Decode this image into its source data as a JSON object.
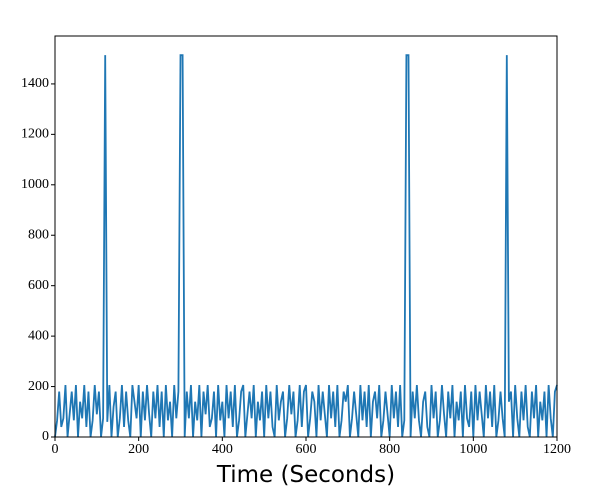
{
  "chart_data": {
    "type": "line",
    "xlabel": "Time (Seconds)",
    "x": [
      0,
      5,
      10,
      15,
      20,
      25,
      30,
      35,
      40,
      45,
      50,
      55,
      60,
      65,
      70,
      75,
      80,
      85,
      90,
      95,
      100,
      105,
      110,
      115,
      120,
      125,
      130,
      135,
      140,
      145,
      150,
      155,
      160,
      165,
      170,
      175,
      180,
      185,
      190,
      195,
      200,
      205,
      210,
      215,
      220,
      225,
      230,
      235,
      240,
      245,
      250,
      255,
      260,
      265,
      270,
      275,
      280,
      285,
      290,
      295,
      300,
      305,
      310,
      315,
      320,
      325,
      330,
      335,
      340,
      345,
      350,
      355,
      360,
      365,
      370,
      375,
      380,
      385,
      390,
      395,
      400,
      405,
      410,
      415,
      420,
      425,
      430,
      435,
      440,
      445,
      450,
      455,
      460,
      465,
      470,
      475,
      480,
      485,
      490,
      495,
      500,
      505,
      510,
      515,
      520,
      525,
      530,
      535,
      540,
      545,
      550,
      555,
      560,
      565,
      570,
      575,
      580,
      585,
      590,
      595,
      600,
      605,
      610,
      615,
      620,
      625,
      630,
      635,
      640,
      645,
      650,
      655,
      660,
      665,
      670,
      675,
      680,
      685,
      690,
      695,
      700,
      705,
      710,
      715,
      720,
      725,
      730,
      735,
      740,
      745,
      750,
      755,
      760,
      765,
      770,
      775,
      780,
      785,
      790,
      795,
      800,
      805,
      810,
      815,
      820,
      825,
      830,
      835,
      840,
      845,
      850,
      855,
      860,
      865,
      870,
      875,
      880,
      885,
      890,
      895,
      900,
      905,
      910,
      915,
      920,
      925,
      930,
      935,
      940,
      945,
      950,
      955,
      960,
      965,
      970,
      975,
      980,
      985,
      990,
      995,
      1000,
      1005,
      1010,
      1015,
      1020,
      1025,
      1030,
      1035,
      1040,
      1045,
      1050,
      1055,
      1060,
      1065,
      1070,
      1075,
      1080,
      1085,
      1090,
      1095,
      1100,
      1105,
      1110,
      1115,
      1120,
      1125,
      1130,
      1135,
      1140,
      1145,
      1150,
      1155,
      1160,
      1165,
      1170,
      1175,
      1180,
      1185,
      1190,
      1195,
      1200
    ],
    "series": [
      {
        "color": "#1f77b4",
        "values": [
          0,
          66,
          180,
          40,
          74,
          206,
          0,
          90,
          180,
          66,
          206,
          0,
          140,
          74,
          206,
          40,
          180,
          0,
          66,
          206,
          90,
          180,
          0,
          74,
          1514,
          60,
          206,
          0,
          120,
          180,
          0,
          74,
          206,
          40,
          180,
          66,
          0,
          206,
          140,
          74,
          206,
          0,
          180,
          66,
          206,
          90,
          0,
          180,
          74,
          206,
          40,
          180,
          0,
          206,
          66,
          140,
          0,
          206,
          74,
          180,
          1514,
          1514,
          0,
          180,
          74,
          206,
          0,
          140,
          66,
          206,
          0,
          180,
          90,
          206,
          40,
          74,
          180,
          0,
          206,
          66,
          140,
          0,
          206,
          74,
          180,
          40,
          206,
          0,
          66,
          180,
          206,
          0,
          90,
          180,
          74,
          206,
          0,
          140,
          66,
          180,
          0,
          206,
          74,
          180,
          40,
          0,
          206,
          66,
          140,
          180,
          0,
          74,
          206,
          90,
          180,
          0,
          66,
          206,
          40,
          180,
          206,
          0,
          74,
          180,
          140,
          0,
          206,
          66,
          180,
          90,
          0,
          206,
          74,
          180,
          40,
          206,
          0,
          66,
          180,
          140,
          206,
          0,
          74,
          180,
          90,
          0,
          206,
          66,
          180,
          40,
          206,
          0,
          140,
          180,
          74,
          206,
          0,
          66,
          180,
          90,
          0,
          206,
          74,
          180,
          40,
          206,
          0,
          66,
          1514,
          1514,
          0,
          180,
          74,
          206,
          66,
          0,
          140,
          180,
          40,
          0,
          206,
          74,
          180,
          0,
          66,
          206,
          90,
          0,
          180,
          74,
          206,
          0,
          140,
          66,
          180,
          0,
          206,
          74,
          40,
          180,
          0,
          206,
          66,
          180,
          90,
          0,
          206,
          74,
          180,
          40,
          206,
          0,
          66,
          180,
          74,
          0,
          1514,
          140,
          180,
          0,
          206,
          74,
          0,
          180,
          66,
          206,
          40,
          0,
          180,
          74,
          206,
          0,
          140,
          66,
          180,
          0,
          206,
          74,
          0,
          180,
          206
        ]
      }
    ],
    "xlim": [
      0,
      1200
    ],
    "xticks": [
      0,
      200,
      400,
      600,
      800,
      1000,
      1200
    ],
    "ylim": [
      0,
      1590
    ],
    "yticks": [
      0,
      200,
      400,
      600,
      800,
      1000,
      1200,
      1400
    ]
  }
}
